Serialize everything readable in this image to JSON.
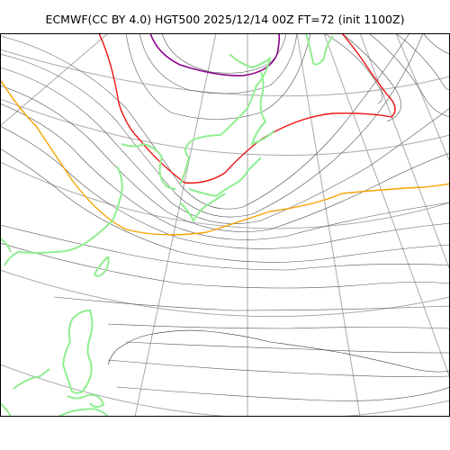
{
  "header": {
    "title": "ECMWF(CC BY 4.0) HGT500 2025/12/14 00Z FT=72 (init 1100Z)"
  },
  "map": {
    "projection": "polar-stereographic",
    "layers": [
      {
        "name": "geopotential-height-500hPa-contours",
        "color": "#555555"
      },
      {
        "name": "highlight-contour-purple",
        "color": "#8b008b"
      },
      {
        "name": "highlight-contour-red",
        "color": "#ee1111"
      },
      {
        "name": "highlight-contour-orange",
        "color": "#f5a300"
      },
      {
        "name": "coastline",
        "color": "#90ee90"
      },
      {
        "name": "graticule",
        "color": "#aaaaaa"
      }
    ]
  }
}
